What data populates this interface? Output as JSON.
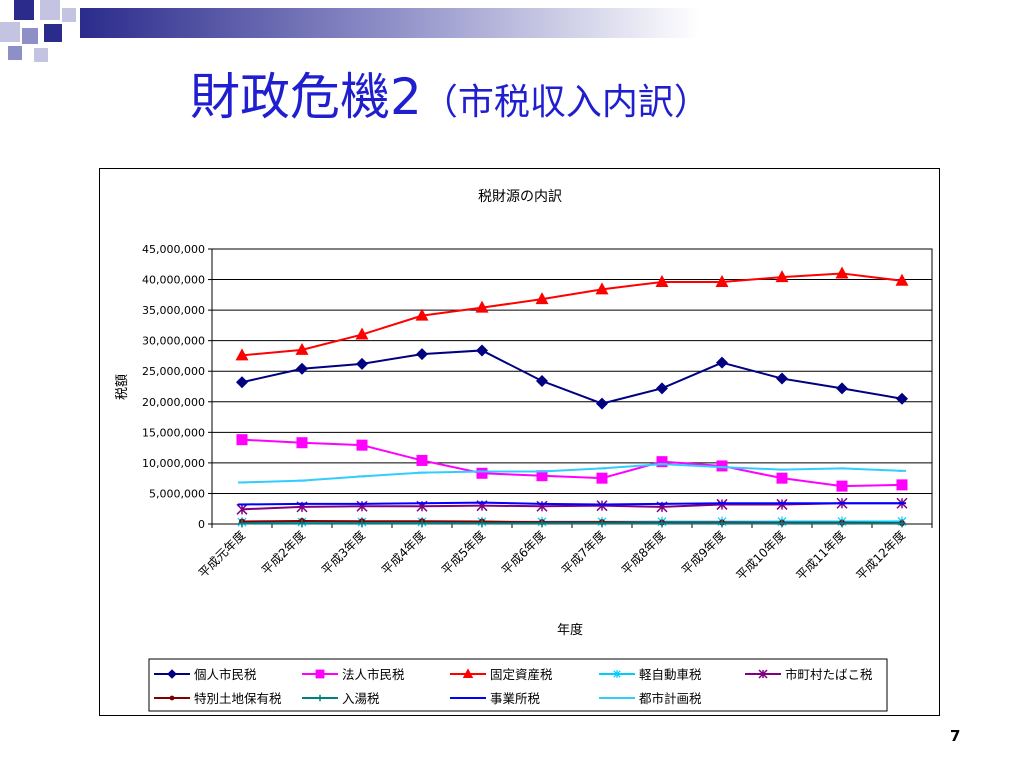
{
  "slide": {
    "title_main": "財政危機2",
    "title_sub": "（市税収入内訳）",
    "page_number": "7"
  },
  "colors": {
    "title": "#1f1fd0",
    "deco_dark": "#2b2b8c",
    "deco_mid": "#8f8fc8",
    "deco_light": "#c4c4e2"
  },
  "chart_data": {
    "type": "line",
    "title": "税財源の内訳",
    "xlabel": "年度",
    "ylabel": "税額",
    "ylim": [
      0,
      45000000
    ],
    "yticks": [
      0,
      5000000,
      10000000,
      15000000,
      20000000,
      25000000,
      30000000,
      35000000,
      40000000,
      45000000
    ],
    "ytick_labels": [
      "0",
      "5,000,000",
      "10,000,000",
      "15,000,000",
      "20,000,000",
      "25,000,000",
      "30,000,000",
      "35,000,000",
      "40,000,000",
      "45,000,000"
    ],
    "grid": true,
    "legend_position": "bottom",
    "categories": [
      "平成元年度",
      "平成2年度",
      "平成3年度",
      "平成4年度",
      "平成5年度",
      "平成6年度",
      "平成7年度",
      "平成8年度",
      "平成9年度",
      "平成10年度",
      "平成11年度",
      "平成12年度"
    ],
    "series": [
      {
        "name": "個人市民税",
        "color": "#000080",
        "marker": "diamond",
        "values": [
          23200000,
          25400000,
          26200000,
          27800000,
          28400000,
          23400000,
          19700000,
          22200000,
          26400000,
          23800000,
          22200000,
          20500000
        ]
      },
      {
        "name": "法人市民税",
        "color": "#ff00ff",
        "marker": "square",
        "values": [
          13800000,
          13300000,
          12900000,
          10400000,
          8300000,
          7900000,
          7500000,
          10200000,
          9500000,
          7500000,
          6200000,
          6400000
        ]
      },
      {
        "name": "固定資産税",
        "color": "#ff0000",
        "marker": "triangle",
        "values": [
          27600000,
          28500000,
          31000000,
          34100000,
          35400000,
          36800000,
          38400000,
          39600000,
          39600000,
          40400000,
          41000000,
          39800000
        ]
      },
      {
        "name": "軽自動車税",
        "color": "#00ccff",
        "marker": "star",
        "values": [
          300000,
          310000,
          320000,
          340000,
          350000,
          360000,
          370000,
          380000,
          390000,
          400000,
          410000,
          420000
        ]
      },
      {
        "name": "市町村たばこ税",
        "color": "#800080",
        "marker": "asterisk",
        "values": [
          2400000,
          2800000,
          2900000,
          2900000,
          3000000,
          2900000,
          3000000,
          2800000,
          3200000,
          3200000,
          3400000,
          3400000
        ]
      },
      {
        "name": "特別土地保有税",
        "color": "#800000",
        "marker": "circle",
        "values": [
          400000,
          500000,
          450000,
          450000,
          400000,
          300000,
          300000,
          250000,
          250000,
          200000,
          200000,
          150000
        ]
      },
      {
        "name": "入湯税",
        "color": "#008080",
        "marker": "plus",
        "values": [
          100000,
          100000,
          100000,
          100000,
          100000,
          100000,
          100000,
          100000,
          100000,
          100000,
          100000,
          100000
        ]
      },
      {
        "name": "事業所税",
        "color": "#0000ff",
        "marker": "dash",
        "values": [
          3200000,
          3300000,
          3300000,
          3400000,
          3500000,
          3300000,
          3200000,
          3300000,
          3400000,
          3400000,
          3400000,
          3400000
        ]
      },
      {
        "name": "都市計画税",
        "color": "#33ccff",
        "marker": "dash",
        "values": [
          6800000,
          7100000,
          7800000,
          8400000,
          8600000,
          8600000,
          9100000,
          9800000,
          9300000,
          8900000,
          9100000,
          8700000
        ]
      }
    ]
  }
}
